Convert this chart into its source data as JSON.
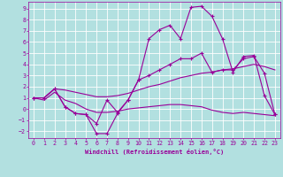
{
  "background_color": "#b2e0e0",
  "grid_color": "#ffffff",
  "line_color": "#990099",
  "xlabel": "Windchill (Refroidissement éolien,°C)",
  "xlim": [
    -0.5,
    23.5
  ],
  "ylim": [
    -2.6,
    9.6
  ],
  "xticks": [
    0,
    1,
    2,
    3,
    4,
    5,
    6,
    7,
    8,
    9,
    10,
    11,
    12,
    13,
    14,
    15,
    16,
    17,
    18,
    19,
    20,
    21,
    22,
    23
  ],
  "yticks": [
    -2,
    -1,
    0,
    1,
    2,
    3,
    4,
    5,
    6,
    7,
    8,
    9
  ],
  "line1_x": [
    0,
    1,
    2,
    3,
    4,
    5,
    6,
    7,
    8,
    9,
    10,
    11,
    12,
    13,
    14,
    15,
    16,
    17,
    18,
    19,
    20,
    21,
    22,
    23
  ],
  "line1_y": [
    1.0,
    1.0,
    1.8,
    0.2,
    -0.4,
    -0.5,
    -1.3,
    0.8,
    -0.3,
    0.8,
    2.6,
    6.3,
    7.1,
    7.5,
    6.3,
    9.1,
    9.2,
    8.3,
    6.3,
    3.3,
    4.7,
    4.8,
    1.2,
    -0.5
  ],
  "line2_x": [
    0,
    1,
    2,
    3,
    4,
    5,
    6,
    7,
    8,
    9,
    10,
    11,
    12,
    13,
    14,
    15,
    16,
    17,
    18,
    19,
    20,
    21,
    22,
    23
  ],
  "line2_y": [
    1.0,
    1.0,
    1.8,
    0.2,
    -0.4,
    -0.5,
    -2.2,
    -2.2,
    -0.4,
    0.8,
    2.6,
    3.0,
    3.5,
    4.0,
    4.5,
    4.5,
    5.0,
    3.3,
    3.5,
    3.5,
    4.5,
    4.7,
    3.2,
    -0.5
  ],
  "line3_x": [
    0,
    1,
    2,
    3,
    4,
    5,
    6,
    7,
    8,
    9,
    10,
    11,
    12,
    13,
    14,
    15,
    16,
    17,
    18,
    19,
    20,
    21,
    22,
    23
  ],
  "line3_y": [
    1.0,
    1.0,
    1.8,
    1.7,
    1.5,
    1.3,
    1.1,
    1.1,
    1.2,
    1.4,
    1.7,
    2.0,
    2.2,
    2.5,
    2.8,
    3.0,
    3.2,
    3.3,
    3.5,
    3.6,
    3.8,
    4.0,
    3.8,
    3.5
  ],
  "line4_x": [
    0,
    1,
    2,
    3,
    4,
    5,
    6,
    7,
    8,
    9,
    10,
    11,
    12,
    13,
    14,
    15,
    16,
    17,
    18,
    19,
    20,
    21,
    22,
    23
  ],
  "line4_y": [
    1.0,
    0.8,
    1.5,
    0.8,
    0.5,
    0.0,
    -0.3,
    -0.3,
    -0.2,
    0.0,
    0.1,
    0.2,
    0.3,
    0.4,
    0.4,
    0.3,
    0.2,
    -0.1,
    -0.3,
    -0.4,
    -0.3,
    -0.4,
    -0.5,
    -0.6
  ]
}
